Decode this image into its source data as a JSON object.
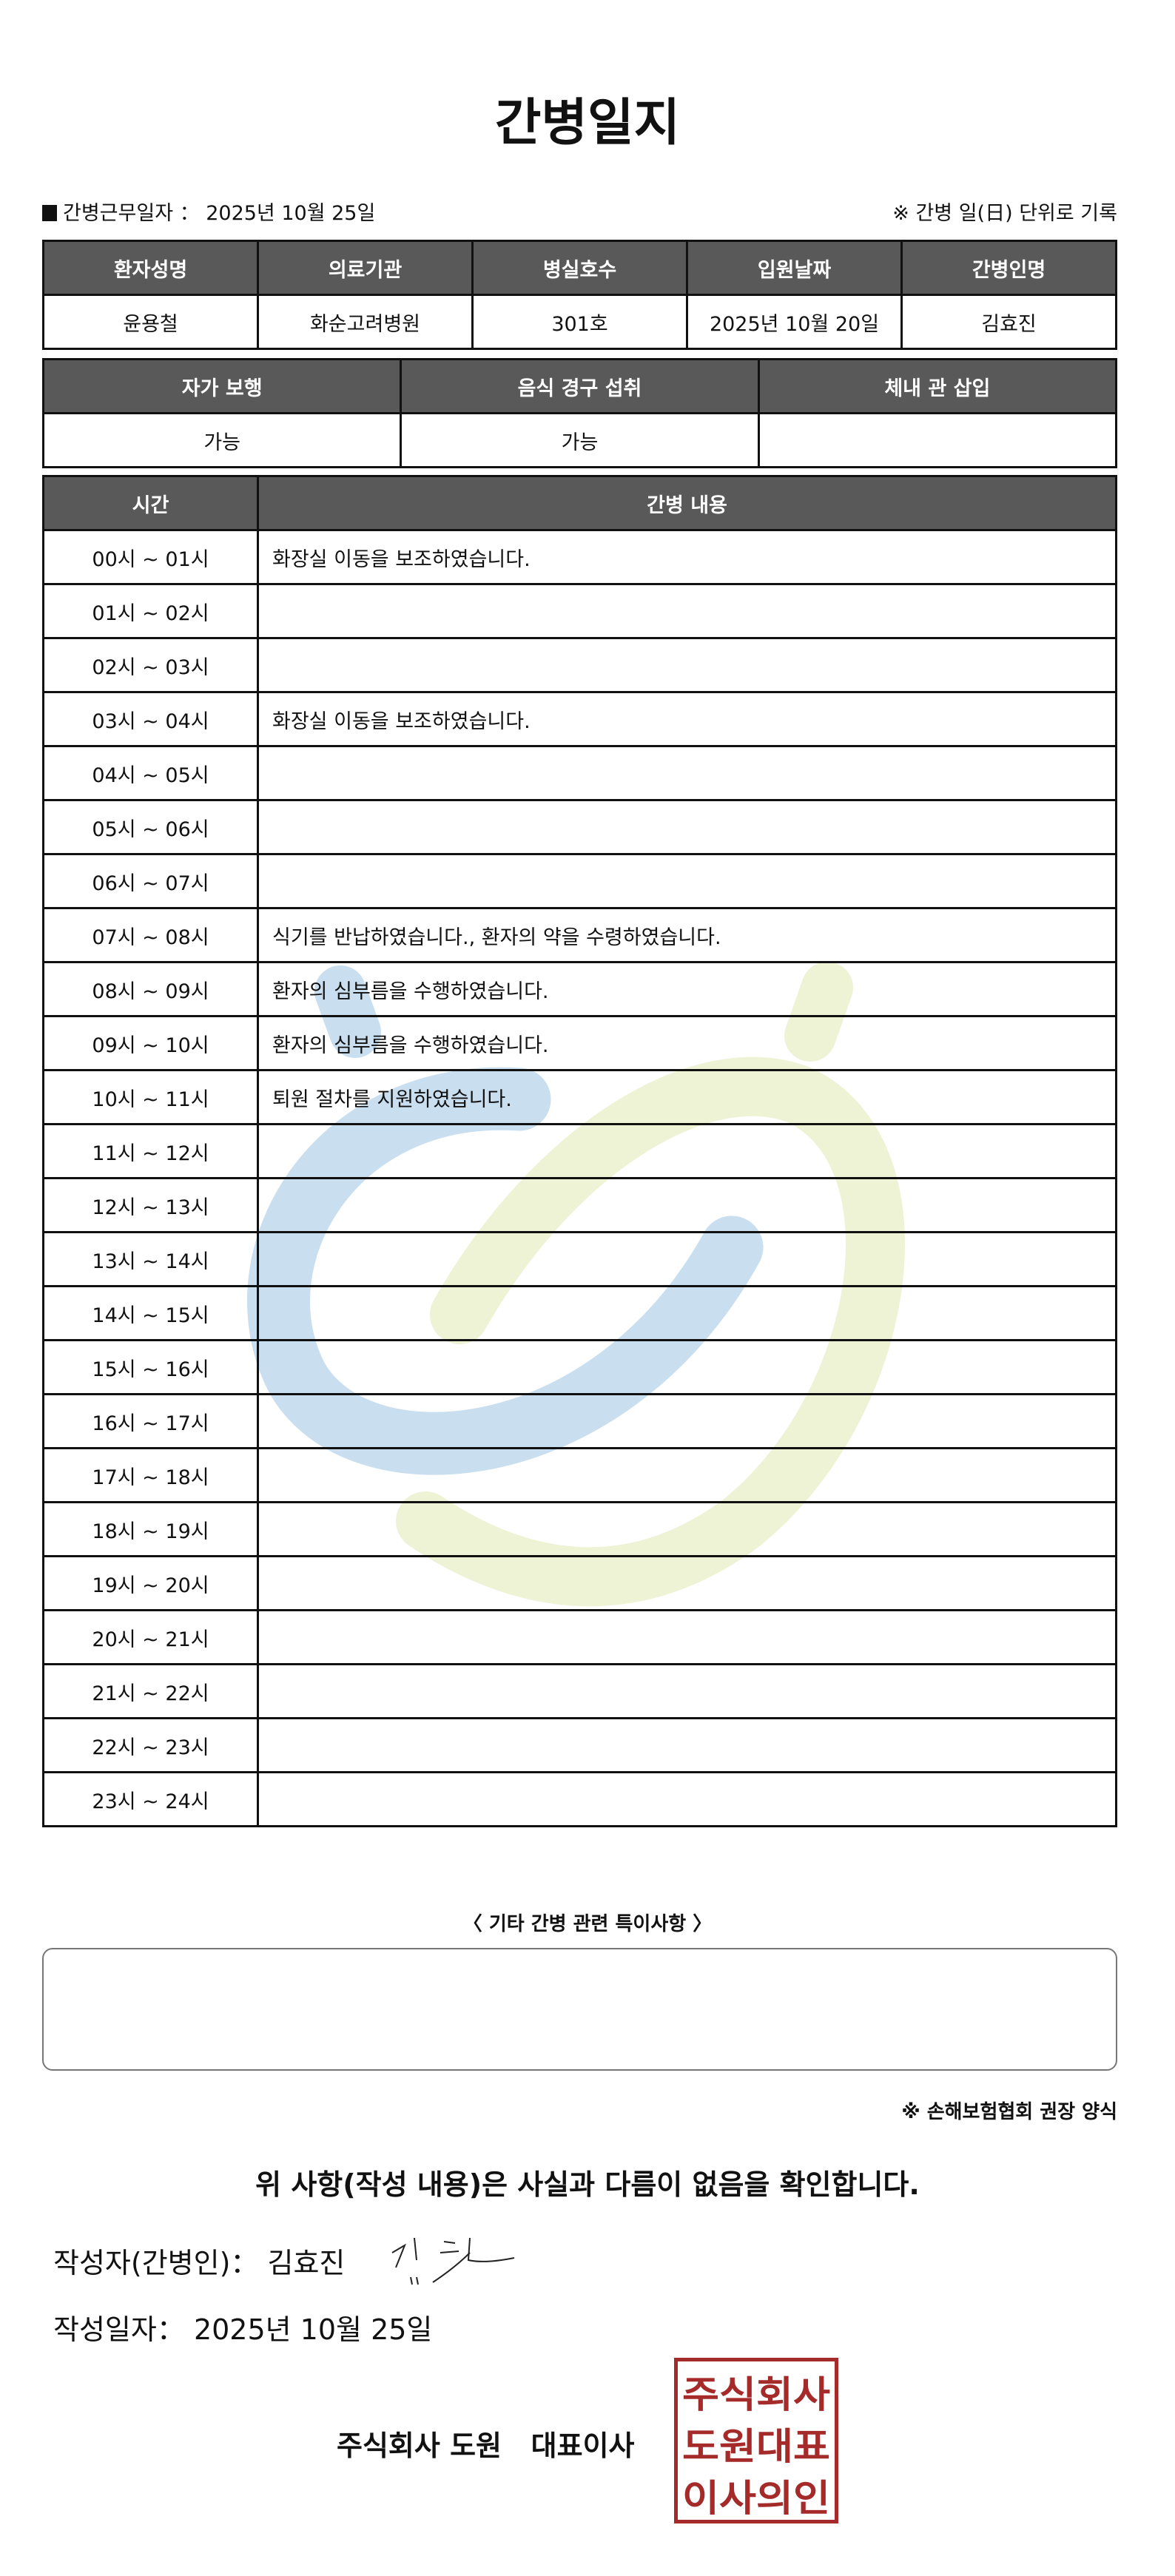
{
  "title": "간병일지",
  "work_date": {
    "label": "간병근무일자 ：",
    "value": "2025년 10월 25일"
  },
  "unit_note": "※ 간병 일(日) 단위로 기록",
  "patient_table": {
    "headers": [
      "환자성명",
      "의료기관",
      "병실호수",
      "입원날짜",
      "간병인명"
    ],
    "values": [
      "윤용철",
      "화순고려병원",
      "301호",
      "2025년 10월 20일",
      "김효진"
    ]
  },
  "status_table": {
    "headers": [
      "자가 보행",
      "음식 경구 섭취",
      "체내 관 삽입"
    ],
    "values": [
      "가능",
      "가능",
      ""
    ]
  },
  "log_table": {
    "headers": [
      "시간",
      "간병 내용"
    ],
    "rows": [
      {
        "time": "00시 ~ 01시",
        "content": "화장실 이동을 보조하였습니다."
      },
      {
        "time": "01시 ~ 02시",
        "content": ""
      },
      {
        "time": "02시 ~ 03시",
        "content": ""
      },
      {
        "time": "03시 ~ 04시",
        "content": "화장실 이동을 보조하였습니다."
      },
      {
        "time": "04시 ~ 05시",
        "content": ""
      },
      {
        "time": "05시 ~ 06시",
        "content": ""
      },
      {
        "time": "06시 ~ 07시",
        "content": ""
      },
      {
        "time": "07시 ~ 08시",
        "content": "식기를 반납하였습니다., 환자의 약을 수령하였습니다."
      },
      {
        "time": "08시 ~ 09시",
        "content": "환자의 심부름을 수행하였습니다."
      },
      {
        "time": "09시 ~ 10시",
        "content": "환자의 심부름을 수행하였습니다."
      },
      {
        "time": "10시 ~ 11시",
        "content": "퇴원 절차를 지원하였습니다."
      },
      {
        "time": "11시 ~ 12시",
        "content": ""
      },
      {
        "time": "12시 ~ 13시",
        "content": ""
      },
      {
        "time": "13시 ~ 14시",
        "content": ""
      },
      {
        "time": "14시 ~ 15시",
        "content": ""
      },
      {
        "time": "15시 ~ 16시",
        "content": ""
      },
      {
        "time": "16시 ~ 17시",
        "content": ""
      },
      {
        "time": "17시 ~ 18시",
        "content": ""
      },
      {
        "time": "18시 ~ 19시",
        "content": ""
      },
      {
        "time": "19시 ~ 20시",
        "content": ""
      },
      {
        "time": "20시 ~ 21시",
        "content": ""
      },
      {
        "time": "21시 ~ 22시",
        "content": ""
      },
      {
        "time": "22시 ~ 23시",
        "content": ""
      },
      {
        "time": "23시 ~ 24시",
        "content": ""
      }
    ]
  },
  "remarks": {
    "title": "〈 기타 간병 관련 특이사항 〉",
    "value": ""
  },
  "association_note": "※ 손해보험협회 권장 양식",
  "confirmation": "위 사항(작성 내용)은 사실과 다름이 없음을 확인합니다.",
  "writer": {
    "label": "작성자(간병인)：",
    "name": "김효진"
  },
  "written_date": {
    "label": "작성일자：",
    "value": "2025년 10월 25일"
  },
  "company": "주식회사 도원   대표이사",
  "stamp_text": [
    "주식회사",
    "도원대표",
    "이사의인"
  ],
  "colors": {
    "header_bg": "#595959",
    "stamp": "#a52a2a",
    "watermark_blue": "#c9dfef",
    "watermark_green": "#eef3d6"
  }
}
